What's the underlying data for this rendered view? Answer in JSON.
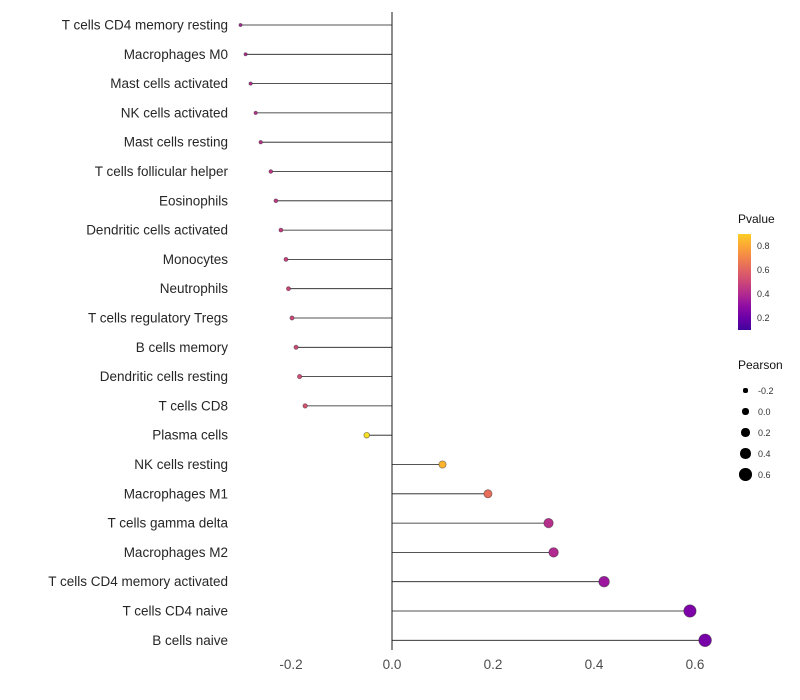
{
  "chart_data": {
    "type": "lollipop",
    "title": "",
    "xlabel": "",
    "ylabel": "",
    "grid": false,
    "legend_position": "right",
    "xlim": [
      -0.33,
      0.68
    ],
    "x_ticks": [
      -0.2,
      0.0,
      0.2,
      0.4,
      0.6
    ],
    "points": [
      {
        "label": "T cells CD4 memory resting",
        "pearson": -0.3,
        "pvalue": 0.38,
        "color": "#aa2395"
      },
      {
        "label": "Macrophages M0",
        "pearson": -0.29,
        "pvalue": 0.4,
        "color": "#b12a90"
      },
      {
        "label": "Mast cells activated",
        "pearson": -0.28,
        "pvalue": 0.41,
        "color": "#b32d8e"
      },
      {
        "label": "NK cells activated",
        "pearson": -0.27,
        "pvalue": 0.42,
        "color": "#b52f8c"
      },
      {
        "label": "Mast cells resting",
        "pearson": -0.26,
        "pvalue": 0.43,
        "color": "#b83289"
      },
      {
        "label": "T cells follicular helper",
        "pearson": -0.24,
        "pvalue": 0.45,
        "color": "#bd3786"
      },
      {
        "label": "Eosinophils",
        "pearson": -0.23,
        "pvalue": 0.46,
        "color": "#c03a83"
      },
      {
        "label": "Dendritic cells activated",
        "pearson": -0.22,
        "pvalue": 0.47,
        "color": "#c33d80"
      },
      {
        "label": "Monocytes",
        "pearson": -0.21,
        "pvalue": 0.48,
        "color": "#c6417d"
      },
      {
        "label": "Neutrophils",
        "pearson": -0.205,
        "pvalue": 0.49,
        "color": "#c9447a"
      },
      {
        "label": "T cells regulatory  Tregs",
        "pearson": -0.198,
        "pvalue": 0.5,
        "color": "#cc4778"
      },
      {
        "label": "B cells memory",
        "pearson": -0.19,
        "pvalue": 0.51,
        "color": "#ce4a75"
      },
      {
        "label": "Dendritic cells resting",
        "pearson": -0.183,
        "pvalue": 0.52,
        "color": "#d04d73"
      },
      {
        "label": "T cells CD8",
        "pearson": -0.172,
        "pvalue": 0.54,
        "color": "#d5536f"
      },
      {
        "label": "Plasma cells",
        "pearson": -0.05,
        "pvalue": 0.88,
        "color": "#f8e125"
      },
      {
        "label": "NK cells resting",
        "pearson": 0.1,
        "pvalue": 0.8,
        "color": "#fcb42c"
      },
      {
        "label": "Macrophages M1",
        "pearson": 0.19,
        "pvalue": 0.63,
        "color": "#e76e5b"
      },
      {
        "label": "T cells gamma delta",
        "pearson": 0.31,
        "pvalue": 0.42,
        "color": "#b52f8c"
      },
      {
        "label": "Macrophages M2",
        "pearson": 0.32,
        "pvalue": 0.4,
        "color": "#b12a90"
      },
      {
        "label": "T cells CD4 memory activated",
        "pearson": 0.42,
        "pvalue": 0.3,
        "color": "#9c179e"
      },
      {
        "label": "T cells CD4 naive",
        "pearson": 0.59,
        "pvalue": 0.16,
        "color": "#7e03a8"
      },
      {
        "label": "B cells naive",
        "pearson": 0.62,
        "pvalue": 0.14,
        "color": "#7602a8"
      }
    ],
    "legend": {
      "color_title": "Pvalue",
      "color_ticks": [
        0.8,
        0.6,
        0.4,
        0.2
      ],
      "color_scale": [
        "#fcce25",
        "#fca636",
        "#f2844b",
        "#e16462",
        "#cc4778",
        "#b12a90",
        "#8f0da4",
        "#6a00a8",
        "#41049d"
      ],
      "size_title": "Pearson",
      "size_ticks": [
        -0.2,
        0.0,
        0.2,
        0.4,
        0.6
      ]
    }
  },
  "colors": {
    "stem": "#1a1a1a",
    "zero_line": "#000000",
    "axis_text": "#4d4d4d",
    "label_text": "#262626",
    "background": "#ffffff",
    "size_legend_dot": "#000000"
  }
}
